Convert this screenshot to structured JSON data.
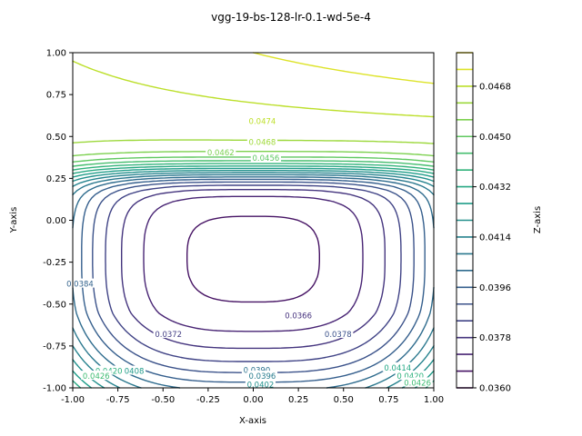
{
  "chart_data": {
    "type": "contour",
    "title": "vgg-19-bs-128-lr-0.1-wd-5e-4",
    "xlabel": "X-axis",
    "ylabel": "Y-axis",
    "colorbar_label": "Z-axis",
    "xlim": [
      -1.0,
      1.0
    ],
    "ylim": [
      -1.0,
      1.0
    ],
    "x_ticks": [
      "-1.00",
      "-0.75",
      "-0.50",
      "-0.25",
      "0.00",
      "0.25",
      "0.50",
      "0.75",
      "1.00"
    ],
    "y_ticks": [
      "-1.00",
      "-0.75",
      "-0.50",
      "-0.25",
      "0.00",
      "0.25",
      "0.50",
      "0.75",
      "1.00"
    ],
    "colorbar_range": [
      0.036,
      0.048
    ],
    "colorbar_ticks": [
      "0.0360",
      "0.0378",
      "0.0396",
      "0.0414",
      "0.0432",
      "0.0450",
      "0.0468"
    ],
    "colormap": "viridis",
    "level_step": 0.0006,
    "contour_labels": [
      {
        "text": "0.0474",
        "x": 0.05,
        "y": 0.59,
        "color": "#bddf26"
      },
      {
        "text": "0.0468",
        "x": 0.05,
        "y": 0.465,
        "color": "#a0da39"
      },
      {
        "text": "0.0462",
        "x": -0.18,
        "y": 0.405,
        "color": "#7ad151"
      },
      {
        "text": "0.0456",
        "x": 0.07,
        "y": 0.37,
        "color": "#5ec962"
      },
      {
        "text": "0.0366",
        "x": 0.25,
        "y": -0.57,
        "color": "#46327e"
      },
      {
        "text": "0.0372",
        "x": -0.47,
        "y": -0.68,
        "color": "#433e85"
      },
      {
        "text": "0.0378",
        "x": 0.47,
        "y": -0.68,
        "color": "#3b528b"
      },
      {
        "text": "0.0384",
        "x": -0.96,
        "y": -0.38,
        "color": "#33638d"
      },
      {
        "text": "0.0390",
        "x": 0.02,
        "y": -0.895,
        "color": "#2c728e"
      },
      {
        "text": "0.0396",
        "x": 0.05,
        "y": -0.93,
        "color": "#287c8e"
      },
      {
        "text": "0.0402",
        "x": 0.04,
        "y": -0.98,
        "color": "#21918c"
      },
      {
        "text": "0.0408",
        "x": -0.68,
        "y": -0.9,
        "color": "#1f9a8a"
      },
      {
        "text": "0.0414",
        "x": 0.8,
        "y": -0.88,
        "color": "#22a884"
      },
      {
        "text": "0.0420",
        "x": -0.8,
        "y": -0.9,
        "color": "#2db27d"
      },
      {
        "text": "0.0426",
        "x": -0.87,
        "y": -0.93,
        "color": "#3fbc73"
      },
      {
        "text": "0.0420",
        "x": 0.87,
        "y": -0.93,
        "color": "#2db27d"
      },
      {
        "text": "0.0426",
        "x": 0.91,
        "y": -0.97,
        "color": "#3fbc73"
      }
    ]
  }
}
